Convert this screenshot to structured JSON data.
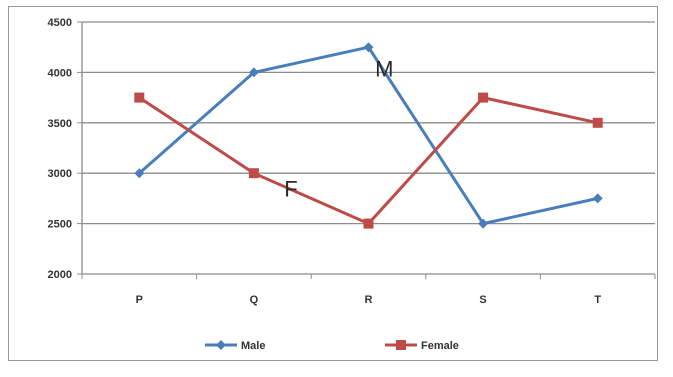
{
  "chart_data": {
    "type": "line",
    "categories": [
      "P",
      "Q",
      "R",
      "S",
      "T"
    ],
    "series": [
      {
        "name": "Male",
        "values": [
          3000,
          4000,
          4250,
          2500,
          2750
        ],
        "color": "#4a7ebb",
        "marker": "diamond"
      },
      {
        "name": "Female",
        "values": [
          3750,
          3000,
          2500,
          3750,
          3500
        ],
        "color": "#be4b48",
        "marker": "square"
      }
    ],
    "ylim": [
      2000,
      4500
    ],
    "yticks": [
      2000,
      2500,
      3000,
      3500,
      4000,
      4500
    ],
    "grid": true,
    "legend_position": "bottom",
    "annotations": [
      {
        "text": "M",
        "series": "Male",
        "between": [
          "R",
          "S"
        ]
      },
      {
        "text": "F",
        "series": "Female",
        "between": [
          "Q",
          "R"
        ]
      }
    ]
  }
}
